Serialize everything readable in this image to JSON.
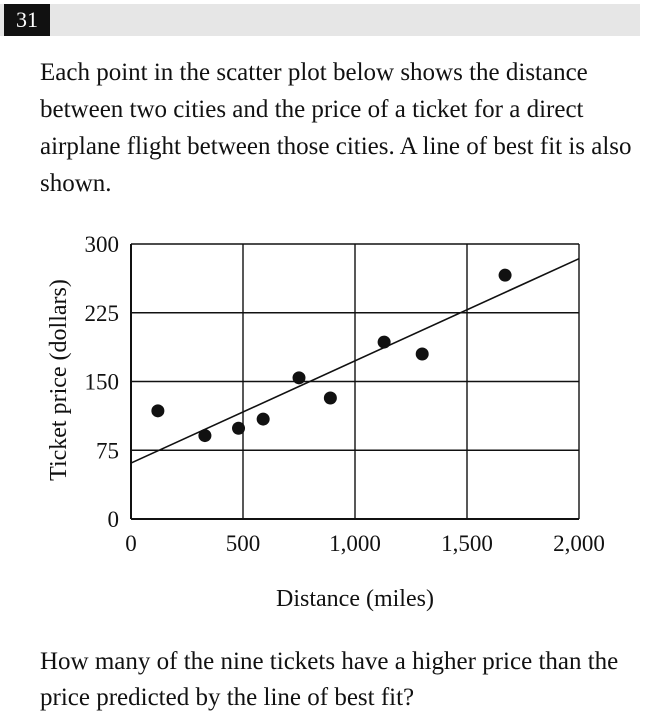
{
  "question_number": "31",
  "prompt": "Each point in the scatter plot below shows the distance between two cities and the price of a ticket for a direct airplane flight between those cities. A line of best fit is also shown.",
  "question": "How many of the nine tickets have a higher price than the price predicted by the line of best fit?",
  "chart_data": {
    "type": "scatter",
    "xlabel": "Distance (miles)",
    "ylabel": "Ticket price (dollars)",
    "xlim": [
      0,
      2000
    ],
    "ylim": [
      0,
      300
    ],
    "x_ticks": [
      0,
      500,
      1000,
      1500,
      2000
    ],
    "x_tick_labels": [
      "0",
      "500",
      "1,000",
      "1,500",
      "2,000"
    ],
    "y_ticks": [
      0,
      75,
      150,
      225,
      300
    ],
    "y_tick_labels": [
      "0",
      "75",
      "150",
      "225",
      "300"
    ],
    "grid": true,
    "points": [
      {
        "x": 120,
        "y": 118
      },
      {
        "x": 330,
        "y": 91
      },
      {
        "x": 480,
        "y": 99
      },
      {
        "x": 590,
        "y": 109
      },
      {
        "x": 750,
        "y": 154
      },
      {
        "x": 890,
        "y": 132
      },
      {
        "x": 1130,
        "y": 193
      },
      {
        "x": 1300,
        "y": 180
      },
      {
        "x": 1670,
        "y": 266
      }
    ],
    "best_fit_line": {
      "x": [
        0,
        2000
      ],
      "y": [
        61,
        284
      ]
    }
  }
}
